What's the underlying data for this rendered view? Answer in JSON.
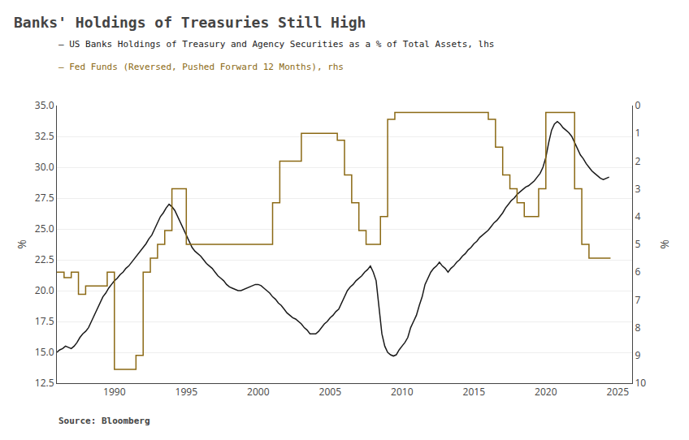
{
  "chart_data": {
    "type": "line",
    "title": "Banks' Holdings of Treasuries Still High",
    "annotations": [
      "Source: Bloomberg"
    ],
    "ylabel": "%",
    "y2label": "%",
    "xlim": [
      1986,
      2026
    ],
    "xticks": [
      1990,
      1995,
      2000,
      2005,
      2010,
      2015,
      2020,
      2025
    ],
    "ylim": [
      12.5,
      35.0
    ],
    "yticks": [
      12.5,
      {
        "value": 15.0,
        "label": "15.0"
      },
      17.5,
      {
        "value": 20.0,
        "label": "20.0"
      },
      22.5,
      {
        "value": 25.0,
        "label": "25.0"
      },
      27.5,
      {
        "value": 30.0,
        "label": "30.0"
      },
      32.5,
      {
        "value": 35.0,
        "label": "35.0"
      }
    ],
    "y2lim": [
      10,
      0
    ],
    "y2ticks": [
      0,
      1,
      2,
      3,
      4,
      5,
      6,
      7,
      8,
      9,
      10
    ],
    "grid": "y",
    "series": [
      {
        "name": "— US Banks Holdings of Treasury and Agency Securities as a % of Total Assets, lhs",
        "color": "#1a1a1a",
        "type": "line",
        "x": [
          1986.0,
          1986.2,
          1986.4,
          1986.6,
          1986.8,
          1987.0,
          1987.2,
          1987.4,
          1987.6,
          1987.8,
          1988.0,
          1988.2,
          1988.4,
          1988.6,
          1988.8,
          1989.0,
          1989.2,
          1989.4,
          1989.6,
          1989.8,
          1990.0,
          1990.2,
          1990.4,
          1990.6,
          1990.8,
          1991.0,
          1991.2,
          1991.4,
          1991.6,
          1991.8,
          1992.0,
          1992.2,
          1992.4,
          1992.6,
          1992.8,
          1993.0,
          1993.2,
          1993.4,
          1993.6,
          1993.8,
          1994.0,
          1994.2,
          1994.4,
          1994.6,
          1994.8,
          1995.0,
          1995.2,
          1995.4,
          1995.6,
          1995.8,
          1996.0,
          1996.2,
          1996.4,
          1996.6,
          1996.8,
          1997.0,
          1997.2,
          1997.4,
          1997.6,
          1997.8,
          1998.0,
          1998.2,
          1998.4,
          1998.6,
          1998.8,
          1999.0,
          1999.2,
          1999.4,
          1999.6,
          1999.8,
          2000.0,
          2000.2,
          2000.4,
          2000.6,
          2000.8,
          2001.0,
          2001.2,
          2001.4,
          2001.6,
          2001.8,
          2002.0,
          2002.2,
          2002.4,
          2002.6,
          2002.8,
          2003.0,
          2003.2,
          2003.4,
          2003.6,
          2003.8,
          2004.0,
          2004.2,
          2004.4,
          2004.6,
          2004.8,
          2005.0,
          2005.2,
          2005.4,
          2005.6,
          2005.8,
          2006.0,
          2006.2,
          2006.4,
          2006.6,
          2006.8,
          2007.0,
          2007.2,
          2007.4,
          2007.6,
          2007.8,
          2008.0,
          2008.2,
          2008.4,
          2008.6,
          2008.8,
          2009.0,
          2009.2,
          2009.4,
          2009.6,
          2009.8,
          2010.0,
          2010.2,
          2010.4,
          2010.6,
          2010.8,
          2011.0,
          2011.2,
          2011.4,
          2011.6,
          2011.8,
          2012.0,
          2012.2,
          2012.4,
          2012.6,
          2012.8,
          2013.0,
          2013.2,
          2013.4,
          2013.6,
          2013.8,
          2014.0,
          2014.2,
          2014.4,
          2014.6,
          2014.8,
          2015.0,
          2015.2,
          2015.4,
          2015.6,
          2015.8,
          2016.0,
          2016.2,
          2016.4,
          2016.6,
          2016.8,
          2017.0,
          2017.2,
          2017.4,
          2017.6,
          2017.8,
          2018.0,
          2018.2,
          2018.4,
          2018.6,
          2018.8,
          2019.0,
          2019.2,
          2019.4,
          2019.6,
          2019.8,
          2020.0,
          2020.2,
          2020.4,
          2020.6,
          2020.8,
          2021.0,
          2021.2,
          2021.4,
          2021.6,
          2021.8,
          2022.0,
          2022.2,
          2022.4,
          2022.6,
          2022.8,
          2023.0,
          2023.2,
          2023.4,
          2023.6,
          2023.8,
          2024.0,
          2024.2,
          2024.4
        ],
        "values": [
          15.0,
          15.2,
          15.3,
          15.5,
          15.4,
          15.3,
          15.5,
          15.8,
          16.2,
          16.5,
          16.7,
          17.0,
          17.5,
          18.0,
          18.5,
          19.0,
          19.5,
          19.8,
          20.2,
          20.5,
          20.8,
          21.0,
          21.3,
          21.5,
          21.8,
          22.0,
          22.3,
          22.6,
          22.9,
          23.2,
          23.5,
          23.8,
          24.2,
          24.5,
          25.0,
          25.5,
          26.0,
          26.3,
          26.7,
          27.0,
          26.8,
          26.5,
          26.0,
          25.5,
          25.0,
          24.5,
          24.0,
          23.5,
          23.2,
          23.0,
          22.8,
          22.5,
          22.2,
          22.0,
          21.8,
          21.5,
          21.2,
          21.0,
          20.8,
          20.5,
          20.3,
          20.2,
          20.1,
          20.0,
          20.0,
          20.1,
          20.2,
          20.3,
          20.4,
          20.5,
          20.5,
          20.4,
          20.2,
          20.0,
          19.8,
          19.5,
          19.3,
          19.0,
          18.8,
          18.5,
          18.2,
          18.0,
          17.8,
          17.7,
          17.5,
          17.3,
          17.0,
          16.8,
          16.5,
          16.5,
          16.5,
          16.7,
          17.0,
          17.3,
          17.5,
          17.8,
          18.0,
          18.3,
          18.5,
          19.0,
          19.5,
          20.0,
          20.3,
          20.5,
          20.8,
          21.0,
          21.2,
          21.5,
          21.7,
          22.0,
          21.5,
          20.8,
          18.5,
          16.5,
          15.5,
          15.0,
          14.8,
          14.7,
          14.8,
          15.2,
          15.5,
          15.8,
          16.2,
          17.0,
          17.5,
          18.0,
          18.8,
          19.5,
          20.5,
          21.0,
          21.5,
          21.8,
          22.0,
          22.3,
          22.0,
          21.8,
          21.5,
          21.8,
          22.0,
          22.3,
          22.5,
          22.8,
          23.0,
          23.3,
          23.5,
          23.8,
          24.0,
          24.3,
          24.5,
          24.7,
          24.9,
          25.2,
          25.5,
          25.7,
          26.0,
          26.3,
          26.7,
          27.0,
          27.3,
          27.5,
          27.8,
          28.0,
          28.2,
          28.4,
          28.5,
          28.7,
          28.9,
          29.2,
          29.5,
          30.0,
          30.8,
          32.0,
          33.0,
          33.5,
          33.7,
          33.5,
          33.2,
          33.0,
          32.8,
          32.5,
          32.0,
          31.5,
          31.0,
          30.7,
          30.3,
          30.0,
          29.7,
          29.5,
          29.3,
          29.1,
          29.0,
          29.1,
          29.2
        ]
      },
      {
        "name": "— Fed Funds (Reversed, Pushed Forward 12 Months), rhs",
        "color": "#8B6914",
        "type": "step",
        "axis": "y2",
        "x": [
          1986.0,
          1986.5,
          1987.0,
          1987.5,
          1988.0,
          1988.5,
          1989.0,
          1989.5,
          1990.0,
          1990.5,
          1991.0,
          1991.5,
          1992.0,
          1992.5,
          1993.0,
          1993.5,
          1994.0,
          1994.5,
          1995.0,
          1995.5,
          1996.0,
          1996.5,
          1997.0,
          1997.5,
          1998.0,
          1998.5,
          1999.0,
          1999.5,
          2000.0,
          2000.5,
          2001.0,
          2001.5,
          2002.0,
          2002.5,
          2003.0,
          2003.5,
          2004.0,
          2004.5,
          2005.0,
          2005.5,
          2006.0,
          2006.5,
          2007.0,
          2007.5,
          2008.0,
          2008.5,
          2009.0,
          2009.5,
          2010.0,
          2010.5,
          2011.0,
          2011.5,
          2012.0,
          2012.5,
          2013.0,
          2013.5,
          2014.0,
          2014.5,
          2015.0,
          2015.5,
          2016.0,
          2016.5,
          2017.0,
          2017.5,
          2018.0,
          2018.5,
          2019.0,
          2019.5,
          2020.0,
          2020.5,
          2021.0,
          2021.5,
          2022.0,
          2022.5,
          2023.0,
          2023.5,
          2024.0,
          2024.5
        ],
        "values": [
          6.0,
          6.2,
          6.0,
          6.8,
          6.5,
          6.5,
          6.5,
          6.0,
          9.5,
          9.5,
          9.5,
          9.0,
          6.0,
          5.5,
          5.0,
          4.5,
          3.0,
          3.0,
          5.0,
          5.0,
          5.0,
          5.0,
          5.0,
          5.0,
          5.0,
          5.0,
          5.0,
          5.0,
          5.0,
          5.0,
          3.5,
          2.0,
          2.0,
          2.0,
          1.0,
          1.0,
          1.0,
          1.0,
          1.0,
          1.25,
          2.5,
          3.5,
          4.5,
          5.0,
          5.0,
          4.0,
          0.5,
          0.25,
          0.25,
          0.25,
          0.25,
          0.25,
          0.25,
          0.25,
          0.25,
          0.25,
          0.25,
          0.25,
          0.25,
          0.25,
          0.5,
          1.5,
          2.5,
          3.0,
          3.5,
          4.0,
          4.0,
          3.0,
          0.25,
          0.25,
          0.25,
          0.25,
          3.0,
          5.0,
          5.5,
          5.5,
          5.5,
          5.5
        ]
      }
    ]
  }
}
